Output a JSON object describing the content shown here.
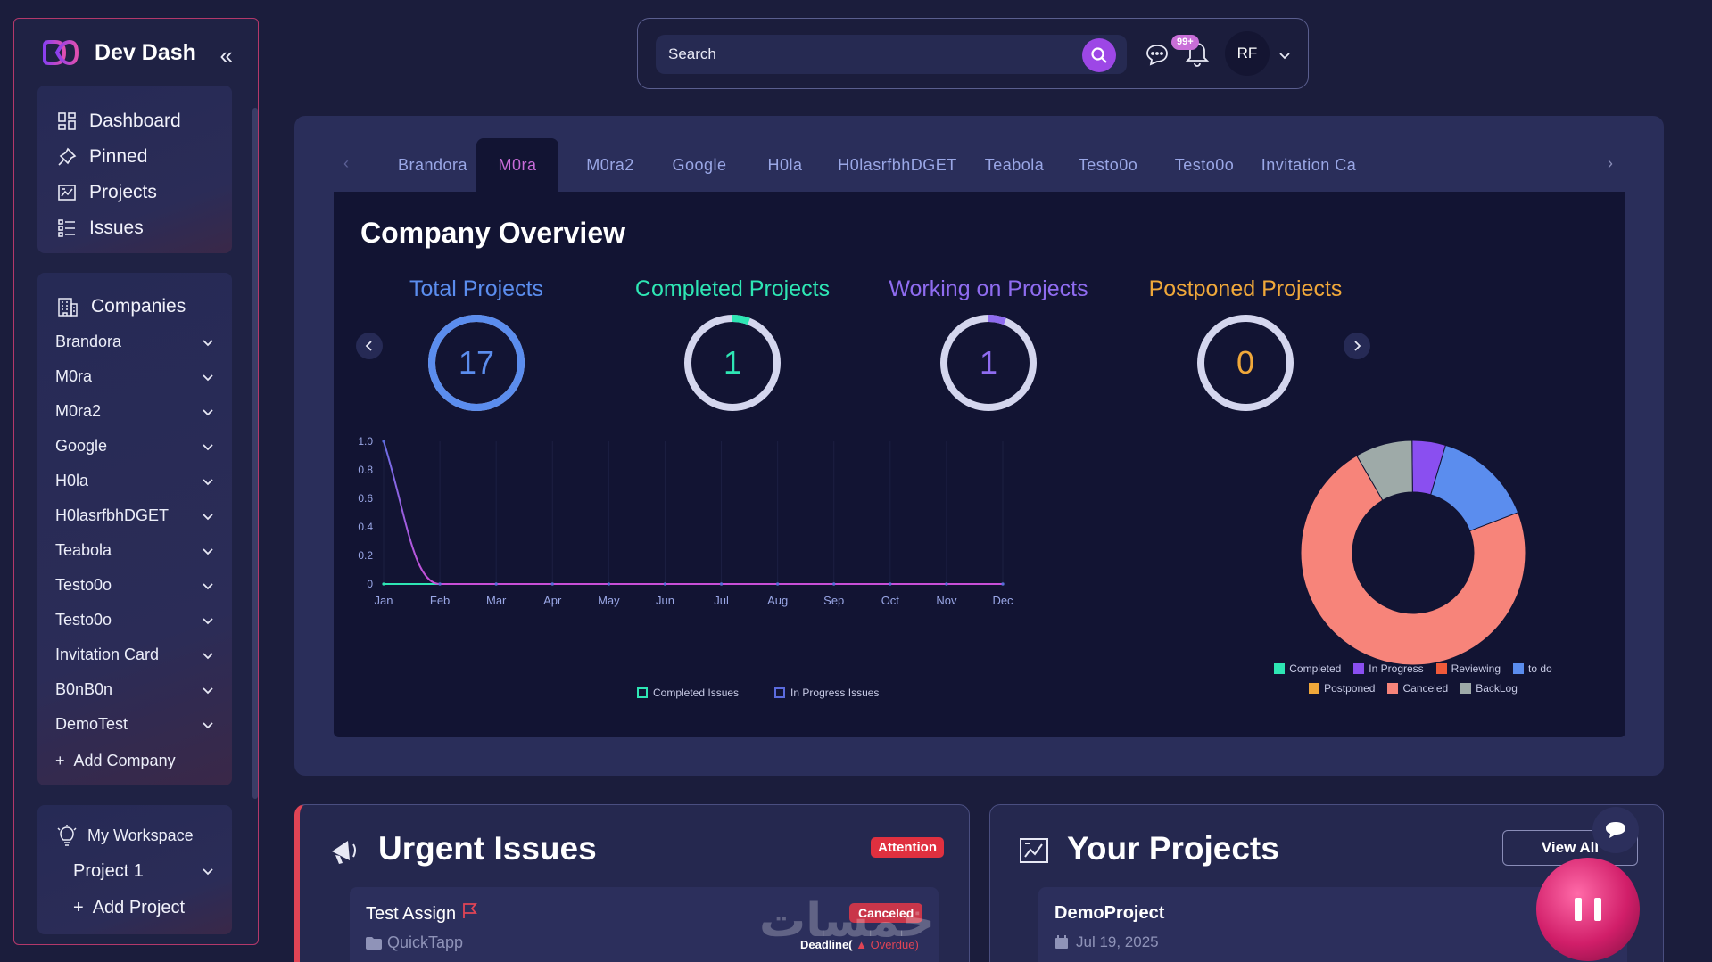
{
  "brand": {
    "name": "Dev Dash"
  },
  "nav": {
    "items": [
      {
        "label": "Dashboard",
        "icon": "grid-icon"
      },
      {
        "label": "Pinned",
        "icon": "pin-icon"
      },
      {
        "label": "Projects",
        "icon": "projects-icon"
      },
      {
        "label": "Issues",
        "icon": "list-icon"
      }
    ]
  },
  "companies": {
    "heading": "Companies",
    "items": [
      "Brandora",
      "M0ra",
      "M0ra2",
      "Google",
      "H0la",
      "H0lasrfbhDGET",
      "Teabola",
      "Testo0o",
      "Testo0o",
      "Invitation Card",
      "B0nB0n",
      "DemoTest"
    ],
    "add_label": "Add Company"
  },
  "workspace": {
    "heading": "My Workspace",
    "project": "Project 1",
    "add_label": "Add Project"
  },
  "search": {
    "placeholder": "Search"
  },
  "notifications": {
    "badge": "99+"
  },
  "user": {
    "initials": "RF"
  },
  "tabs": {
    "items": [
      "Brandora",
      "M0ra",
      "M0ra2",
      "Google",
      "H0la",
      "H0lasrfbhDGET",
      "Teabola",
      "Testo0o",
      "Testo0o",
      "Invitation Ca"
    ],
    "active": "M0ra"
  },
  "overview": {
    "title": "Company Overview",
    "stats": [
      {
        "label": "Total Projects",
        "value": "17",
        "color": "#5b8dee",
        "fraction": 1.0
      },
      {
        "label": "Completed Projects",
        "value": "1",
        "color": "#2ee6b4",
        "fraction": 0.06
      },
      {
        "label": "Working on Projects",
        "value": "1",
        "color": "#8f6cf0",
        "fraction": 0.06
      },
      {
        "label": "Postponed Projects",
        "value": "0",
        "color": "#f0a83a",
        "fraction": 0.0
      }
    ]
  },
  "chart_data": [
    {
      "type": "line",
      "categories": [
        "Jan",
        "Feb",
        "Mar",
        "Apr",
        "May",
        "Jun",
        "Jul",
        "Aug",
        "Sep",
        "Oct",
        "Nov",
        "Dec"
      ],
      "ylim": [
        0,
        1
      ],
      "yticks": [
        "0",
        "0.2",
        "0.4",
        "0.6",
        "0.8",
        "1.0"
      ],
      "series": [
        {
          "name": "Completed Issues",
          "color": "#2ee6b4",
          "values": [
            0,
            0,
            0,
            0,
            0,
            0,
            0,
            0,
            0,
            0,
            0,
            0
          ]
        },
        {
          "name": "In Progress Issues",
          "color": "#5b6bde",
          "values": [
            1,
            0,
            0,
            0,
            0,
            0,
            0,
            0,
            0,
            0,
            0,
            0
          ]
        }
      ],
      "legend": "bottom"
    },
    {
      "type": "pie",
      "donut": true,
      "slices": [
        {
          "name": "Completed",
          "color": "#2ee6b4",
          "value": 0
        },
        {
          "name": "In Progress",
          "color": "#8a4ff0",
          "value": 1
        },
        {
          "name": "Reviewing",
          "color": "#f05a3a",
          "value": 0
        },
        {
          "name": "to do",
          "color": "#5b8dee",
          "value": 3
        },
        {
          "name": "Postponed",
          "color": "#f0a83a",
          "value": 0
        },
        {
          "name": "Canceled",
          "color": "#f7847a",
          "value": 15
        },
        {
          "name": "BackLog",
          "color": "#9eaaa8",
          "value": 1.7
        }
      ],
      "legend": "bottom"
    }
  ],
  "urgent": {
    "title": "Urgent Issues",
    "badge": "Attention",
    "issue": {
      "title": "Test Assign",
      "company": "QuickTapp",
      "status": "Canceled",
      "deadline_label": "Deadline(",
      "deadline_state": "Overdue)"
    }
  },
  "projects": {
    "title": "Your Projects",
    "view_all": "View All",
    "item": {
      "name": "DemoProject",
      "date": "Jul 19, 2025"
    }
  },
  "watermark": "خمسات"
}
